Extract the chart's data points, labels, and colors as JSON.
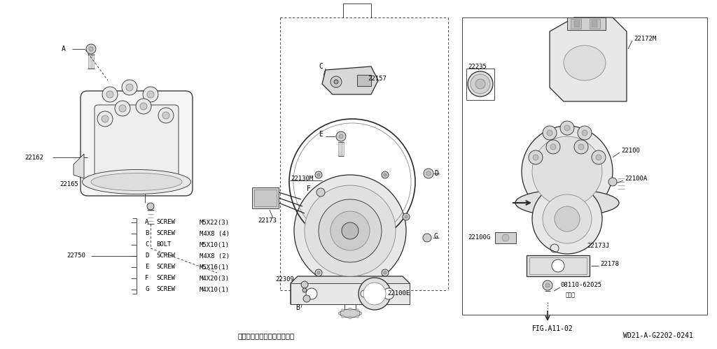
{
  "bg_color": "#ffffff",
  "fig_width": 10.24,
  "fig_height": 4.99,
  "dpi": 100,
  "bottom_text_left": "表記以外の構成部品は非販売",
  "bottom_text_right": "WD21-A-G2202-0241",
  "parts_list_label": "22750",
  "parts_list": [
    [
      "A",
      "SCREW",
      "M5X22(3)"
    ],
    [
      "B",
      "SCREW",
      "M4X8 (4)"
    ],
    [
      "C",
      "BOLT",
      "M5X10(1)"
    ],
    [
      "D",
      "SCREW",
      "M4X8 (2)"
    ],
    [
      "E",
      "SCREW",
      "M5X16(1)"
    ],
    [
      "F",
      "SCREW",
      "M4X20(3)"
    ],
    [
      "G",
      "SCREW",
      "M4X10(1)"
    ]
  ]
}
